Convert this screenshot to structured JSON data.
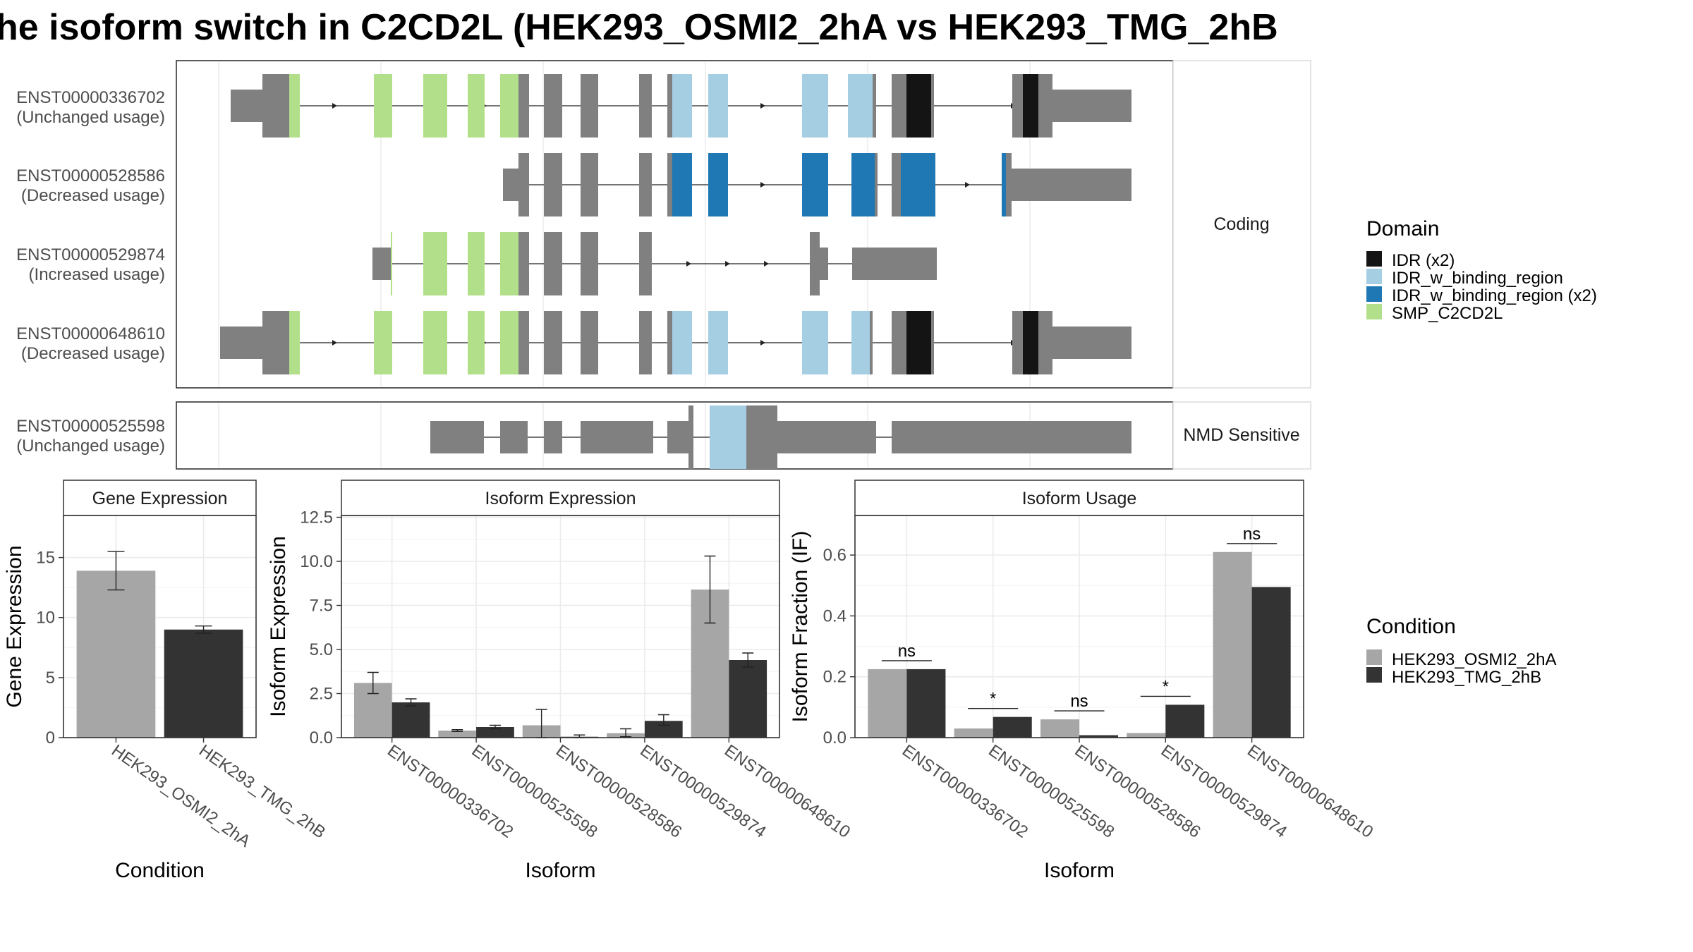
{
  "title": "he isoform switch in C2CD2L (HEK293_OSMI2_2hA vs HEK293_TMG_2hB",
  "colors": {
    "exon_default": "#808080",
    "IDR (x2)": "#141414",
    "IDR_w_binding_region": "#a6cee3",
    "IDR_w_binding_region (x2)": "#1f78b4",
    "SMP_C2CD2L": "#b2df8a",
    "HEK293_OSMI2_2hA": "#a6a6a6",
    "HEK293_TMG_2hB": "#333333"
  },
  "structure": {
    "groups": [
      {
        "label": "Coding",
        "isoforms": [
          "ENST00000336702",
          "ENST00000528586",
          "ENST00000529874",
          "ENST00000648610"
        ]
      },
      {
        "label": "NMD Sensitive",
        "isoforms": [
          "ENST00000525598"
        ]
      }
    ],
    "isoforms": [
      {
        "id": "ENST00000336702",
        "usage": "(Unchanged usage)"
      },
      {
        "id": "ENST00000528586",
        "usage": "(Decreased usage)"
      },
      {
        "id": "ENST00000529874",
        "usage": "(Increased usage)"
      },
      {
        "id": "ENST00000648610",
        "usage": "(Decreased usage)"
      },
      {
        "id": "ENST00000525598",
        "usage": "(Unchanged usage)"
      }
    ]
  },
  "legend_domain": {
    "title": "Domain",
    "items": [
      "IDR (x2)",
      "IDR_w_binding_region",
      "IDR_w_binding_region (x2)",
      "SMP_C2CD2L"
    ]
  },
  "legend_condition": {
    "title": "Condition",
    "items": [
      "HEK293_OSMI2_2hA",
      "HEK293_TMG_2hB"
    ]
  },
  "chart_data": [
    {
      "type": "bar",
      "title": "Gene Expression",
      "xlabel": "Condition",
      "ylabel": "Gene Expression",
      "categories": [
        "HEK293_OSMI2_2hA",
        "HEK293_TMG_2hB"
      ],
      "values": [
        13.9,
        9.0
      ],
      "errors": [
        [
          12.3,
          15.5
        ],
        [
          8.7,
          9.3
        ]
      ],
      "yticks": [
        "0",
        "5",
        "10",
        "15"
      ],
      "ylim": [
        0,
        18.5
      ],
      "grid": true
    },
    {
      "type": "bar",
      "title": "Isoform Expression",
      "xlabel": "Isoform",
      "ylabel": "Isoform Expression",
      "categories": [
        "ENST00000336702",
        "ENST00000525598",
        "ENST00000528586",
        "ENST00000529874",
        "ENST00000648610"
      ],
      "series": [
        {
          "name": "HEK293_OSMI2_2hA",
          "values": [
            3.1,
            0.4,
            0.7,
            0.25,
            8.4
          ],
          "errors": [
            [
              2.5,
              3.7
            ],
            [
              0.35,
              0.45
            ],
            [
              0.0,
              1.6
            ],
            [
              0.05,
              0.5
            ],
            [
              6.5,
              10.3
            ]
          ]
        },
        {
          "name": "HEK293_TMG_2hB",
          "values": [
            2.0,
            0.6,
            0.05,
            0.95,
            4.4
          ],
          "errors": [
            [
              1.8,
              2.2
            ],
            [
              0.5,
              0.7
            ],
            [
              0.0,
              0.15
            ],
            [
              0.7,
              1.3
            ],
            [
              4.0,
              4.8
            ]
          ]
        }
      ],
      "yticks": [
        "0.0",
        "2.5",
        "5.0",
        "7.5",
        "10.0",
        "12.5"
      ],
      "ylim": [
        0,
        12.6
      ],
      "grid": true
    },
    {
      "type": "bar",
      "title": "Isoform Usage",
      "xlabel": "Isoform",
      "ylabel": "Isoform Fraction (IF)",
      "categories": [
        "ENST00000336702",
        "ENST00000525598",
        "ENST00000528586",
        "ENST00000529874",
        "ENST00000648610"
      ],
      "series": [
        {
          "name": "HEK293_OSMI2_2hA",
          "values": [
            0.225,
            0.03,
            0.06,
            0.015,
            0.61
          ]
        },
        {
          "name": "HEK293_TMG_2hB",
          "values": [
            0.225,
            0.068,
            0.008,
            0.108,
            0.495
          ]
        }
      ],
      "significance": [
        "ns",
        "*",
        "ns",
        "*",
        "ns"
      ],
      "yticks": [
        "0.0",
        "0.2",
        "0.4",
        "0.6"
      ],
      "ylim": [
        0,
        0.73
      ],
      "grid": true
    }
  ]
}
